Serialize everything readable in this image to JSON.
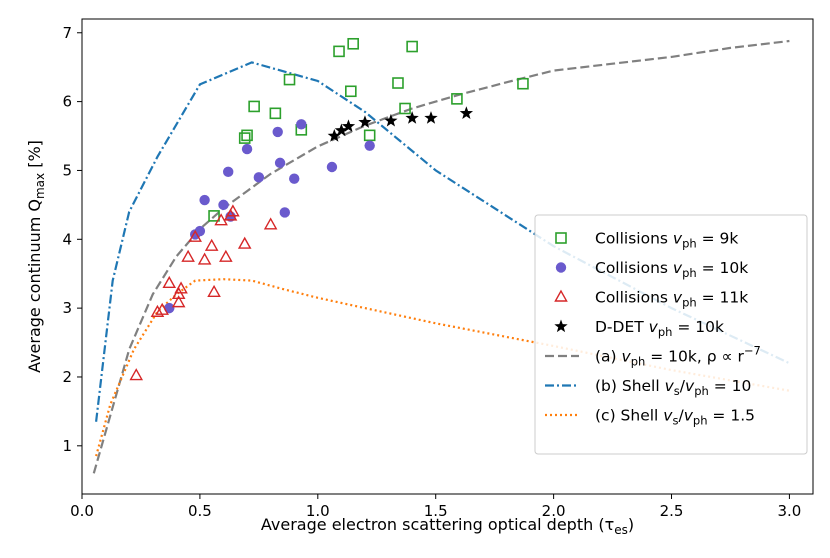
{
  "chart_data": {
    "type": "scatter",
    "xlabel": "Average electron scattering optical depth (τ",
    "xlabel_sub": "es",
    "xlabel_tail": ")",
    "ylabel": "Average continuum Q",
    "ylabel_sub": "max",
    "ylabel_tail": " [%]",
    "xlim": [
      0.0,
      3.1
    ],
    "ylim": [
      0.3,
      7.2
    ],
    "xticks": [
      0.0,
      0.5,
      1.0,
      1.5,
      2.0,
      2.5,
      3.0
    ],
    "xtick_labels": [
      "0.0",
      "0.5",
      "1.0",
      "1.5",
      "2.0",
      "2.5",
      "3.0"
    ],
    "yticks": [
      1,
      2,
      3,
      4,
      5,
      6,
      7
    ],
    "ytick_labels": [
      "1",
      "2",
      "3",
      "4",
      "5",
      "6",
      "7"
    ],
    "legend_position": "lower-right",
    "series": [
      {
        "legend": {
          "pre": "Collisions ",
          "var": "v",
          "sub": "ph",
          "post": " = 9k"
        },
        "marker": "square-open",
        "color": "#2ca02c",
        "points": [
          [
            0.56,
            4.34
          ],
          [
            0.69,
            5.47
          ],
          [
            0.7,
            5.51
          ],
          [
            0.73,
            5.93
          ],
          [
            0.82,
            5.83
          ],
          [
            0.88,
            6.32
          ],
          [
            0.93,
            5.59
          ],
          [
            1.09,
            6.73
          ],
          [
            1.15,
            6.84
          ],
          [
            1.14,
            6.15
          ],
          [
            1.22,
            5.51
          ],
          [
            1.34,
            6.27
          ],
          [
            1.37,
            5.9
          ],
          [
            1.4,
            6.8
          ],
          [
            1.59,
            6.04
          ],
          [
            1.87,
            6.26
          ]
        ]
      },
      {
        "legend": {
          "pre": "Collisions ",
          "var": "v",
          "sub": "ph",
          "post": " = 10k"
        },
        "marker": "circle",
        "color": "#6a5acd",
        "points": [
          [
            0.37,
            3.0
          ],
          [
            0.48,
            4.07
          ],
          [
            0.5,
            4.12
          ],
          [
            0.52,
            4.57
          ],
          [
            0.6,
            4.5
          ],
          [
            0.62,
            4.98
          ],
          [
            0.63,
            4.33
          ],
          [
            0.7,
            5.31
          ],
          [
            0.75,
            4.9
          ],
          [
            0.83,
            5.56
          ],
          [
            0.84,
            5.11
          ],
          [
            0.86,
            4.39
          ],
          [
            0.9,
            4.88
          ],
          [
            0.93,
            5.67
          ],
          [
            1.06,
            5.05
          ],
          [
            1.22,
            5.36
          ]
        ]
      },
      {
        "legend": {
          "pre": "Collisions ",
          "var": "v",
          "sub": "ph",
          "post": " = 11k"
        },
        "marker": "triangle-open",
        "color": "#d62728",
        "points": [
          [
            0.23,
            2.02
          ],
          [
            0.32,
            2.94
          ],
          [
            0.34,
            2.97
          ],
          [
            0.37,
            3.36
          ],
          [
            0.41,
            3.2
          ],
          [
            0.41,
            3.08
          ],
          [
            0.42,
            3.28
          ],
          [
            0.45,
            3.74
          ],
          [
            0.48,
            4.03
          ],
          [
            0.52,
            3.7
          ],
          [
            0.55,
            3.9
          ],
          [
            0.56,
            3.23
          ],
          [
            0.59,
            4.27
          ],
          [
            0.61,
            3.74
          ],
          [
            0.63,
            4.34
          ],
          [
            0.64,
            4.4
          ],
          [
            0.69,
            3.93
          ],
          [
            0.8,
            4.21
          ]
        ]
      },
      {
        "legend": {
          "pre": "D-DET ",
          "var": "v",
          "sub": "ph",
          "post": " = 10k"
        },
        "marker": "star",
        "color": "#000000",
        "points": [
          [
            1.07,
            5.5
          ],
          [
            1.1,
            5.58
          ],
          [
            1.13,
            5.64
          ],
          [
            1.2,
            5.7
          ],
          [
            1.31,
            5.72
          ],
          [
            1.4,
            5.76
          ],
          [
            1.48,
            5.76
          ],
          [
            1.63,
            5.83
          ]
        ]
      }
    ],
    "lines": [
      {
        "legend": {
          "pre": "(a) ",
          "var": "v",
          "sub": "ph",
          "post": " = 10k, ρ ∝ r",
          "sup": "−7"
        },
        "style": "dashed",
        "color": "#808080",
        "points": [
          [
            0.05,
            0.6
          ],
          [
            0.1,
            1.2
          ],
          [
            0.2,
            2.4
          ],
          [
            0.3,
            3.2
          ],
          [
            0.4,
            3.75
          ],
          [
            0.5,
            4.15
          ],
          [
            0.6,
            4.45
          ],
          [
            0.7,
            4.7
          ],
          [
            0.8,
            4.95
          ],
          [
            0.9,
            5.15
          ],
          [
            1.0,
            5.35
          ],
          [
            1.2,
            5.65
          ],
          [
            1.4,
            5.9
          ],
          [
            1.6,
            6.1
          ],
          [
            1.8,
            6.28
          ],
          [
            2.0,
            6.45
          ],
          [
            2.25,
            6.55
          ],
          [
            2.5,
            6.65
          ],
          [
            2.75,
            6.78
          ],
          [
            3.0,
            6.88
          ]
        ]
      },
      {
        "legend": {
          "pre": "(b) Shell ",
          "var": "v",
          "sub": "s",
          "post": "/v",
          "sub2": "ph",
          "post2": " = 10"
        },
        "style": "dashdot",
        "color": "#1f77b4",
        "points": [
          [
            0.06,
            1.35
          ],
          [
            0.13,
            3.4
          ],
          [
            0.2,
            4.4
          ],
          [
            0.32,
            5.2
          ],
          [
            0.5,
            6.25
          ],
          [
            0.72,
            6.57
          ],
          [
            1.0,
            6.3
          ],
          [
            1.2,
            5.85
          ],
          [
            1.5,
            5.0
          ],
          [
            2.0,
            3.9
          ],
          [
            2.5,
            3.0
          ],
          [
            3.0,
            2.2
          ]
        ]
      },
      {
        "legend": {
          "pre": "(c) Shell ",
          "var": "v",
          "sub": "s",
          "post": "/v",
          "sub2": "ph",
          "post2": " = 1.5"
        },
        "style": "dotted",
        "color": "#ff7f0e",
        "points": [
          [
            0.06,
            0.85
          ],
          [
            0.12,
            1.6
          ],
          [
            0.22,
            2.4
          ],
          [
            0.32,
            2.95
          ],
          [
            0.4,
            3.2
          ],
          [
            0.48,
            3.4
          ],
          [
            0.6,
            3.42
          ],
          [
            0.72,
            3.4
          ],
          [
            0.85,
            3.28
          ],
          [
            1.0,
            3.15
          ],
          [
            1.2,
            3.0
          ],
          [
            1.5,
            2.78
          ],
          [
            2.0,
            2.45
          ],
          [
            2.5,
            2.1
          ],
          [
            3.0,
            1.8
          ]
        ]
      }
    ]
  }
}
